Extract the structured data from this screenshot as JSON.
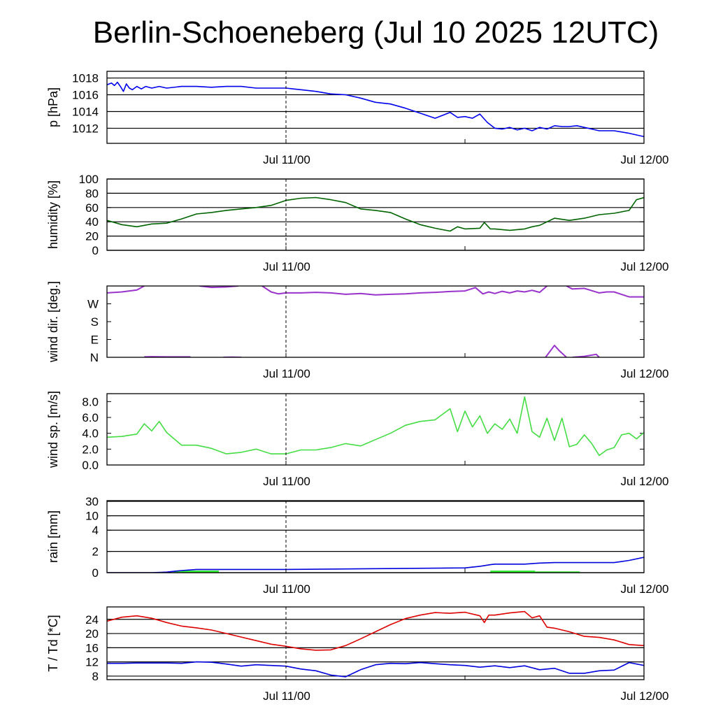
{
  "title": "Berlin-Schoeneberg (Jul 10 2025 12UTC)",
  "x_axis": {
    "tick_labels": [
      "Jul 11/00",
      "Jul 12/00"
    ],
    "x_range_hours": [
      0,
      36
    ],
    "ticks_hours": [
      12,
      24,
      36
    ]
  },
  "chart_data": [
    {
      "type": "line",
      "ylabel": "p [hPa]",
      "ylim": [
        1010.2,
        1018.8
      ],
      "yticks": [
        1012,
        1014,
        1016,
        1018
      ],
      "ytick_labels": [
        "1012",
        "1014",
        "1016",
        "1018"
      ],
      "grid": true,
      "color": "#0000ee",
      "series": [
        {
          "x": [
            0,
            0.3,
            0.5,
            0.7,
            0.9,
            1.1,
            1.3,
            1.5,
            1.7,
            2,
            2.3,
            2.6,
            3,
            3.5,
            4,
            5,
            6,
            7,
            8,
            9,
            10,
            11,
            12,
            12.5,
            13,
            14,
            15,
            16,
            17,
            18,
            19,
            20,
            21,
            22,
            23,
            23.5,
            24,
            24.5,
            25,
            25.5,
            26,
            26.5,
            27,
            27.5,
            28,
            28.5,
            29,
            29.5,
            30,
            30.5,
            31,
            31.5,
            32,
            33,
            34,
            35,
            36
          ],
          "values": [
            1017.2,
            1017.4,
            1017.1,
            1017.5,
            1017.0,
            1016.4,
            1017.3,
            1016.8,
            1016.6,
            1017.0,
            1016.7,
            1017.0,
            1016.8,
            1017.0,
            1016.8,
            1017.0,
            1017.0,
            1016.9,
            1017.0,
            1017.0,
            1016.8,
            1016.8,
            1016.8,
            1016.7,
            1016.6,
            1016.4,
            1016.1,
            1016.0,
            1015.6,
            1015.1,
            1014.9,
            1014.4,
            1013.8,
            1013.2,
            1013.9,
            1013.3,
            1013.4,
            1013.2,
            1013.7,
            1012.7,
            1012.0,
            1011.9,
            1012.1,
            1011.8,
            1012.0,
            1011.7,
            1012.1,
            1011.9,
            1012.3,
            1012.2,
            1012.2,
            1012.3,
            1012.1,
            1011.7,
            1011.7,
            1011.4,
            1011.0
          ]
        }
      ]
    },
    {
      "type": "line",
      "ylabel": "humidity [%]",
      "ylim": [
        0,
        100
      ],
      "yticks": [
        0,
        20,
        40,
        60,
        80,
        100
      ],
      "ytick_labels": [
        "0",
        "20",
        "40",
        "60",
        "80",
        "100"
      ],
      "grid": true,
      "color": "#006400",
      "series": [
        {
          "x": [
            0,
            1,
            2,
            3,
            4,
            5,
            6,
            7,
            8,
            9,
            10,
            11,
            12,
            13,
            14,
            15,
            16,
            17,
            18,
            19,
            20,
            21,
            22,
            23,
            23.5,
            24,
            25,
            25.3,
            25.7,
            26,
            27,
            28,
            28.5,
            29,
            30,
            31,
            32,
            33,
            34,
            35,
            35.5,
            36
          ],
          "values": [
            42,
            36,
            33,
            37,
            38,
            44,
            51,
            53,
            56,
            58,
            60,
            63,
            70,
            73,
            74,
            71,
            67,
            58,
            56,
            53,
            44,
            36,
            31,
            27,
            33,
            30,
            31,
            39,
            30,
            30,
            28,
            30,
            33,
            35,
            45,
            42,
            45,
            50,
            52,
            56,
            71,
            74
          ]
        }
      ]
    },
    {
      "type": "line",
      "ylabel": "wind dir. [deg.]",
      "ylim": [
        0,
        360
      ],
      "yticks": [
        0,
        90,
        180,
        270
      ],
      "ytick_labels": [
        "N",
        "E",
        "S",
        "W"
      ],
      "grid": false,
      "color": "#9933cc",
      "segments": [
        {
          "x": [
            0,
            1,
            2,
            2.5
          ],
          "values": [
            325,
            330,
            340,
            360
          ]
        },
        {
          "x": [
            6.2,
            7,
            8,
            8.8
          ],
          "values": [
            360,
            353,
            355,
            360
          ]
        },
        {
          "x": [
            2.5,
            3,
            4,
            5,
            5.6
          ],
          "values": [
            2,
            3,
            2,
            2,
            2
          ]
        },
        {
          "x": [
            7.8,
            8.4,
            9
          ],
          "values": [
            0,
            1,
            0
          ]
        },
        {
          "x": [
            10.4,
            11,
            11.5,
            12,
            13,
            14,
            15,
            16,
            17,
            18,
            19,
            20,
            21,
            22,
            23,
            24,
            24.7,
            25.2,
            25.6,
            26,
            26.5,
            27,
            27.5,
            28,
            28.5,
            29,
            29.5
          ],
          "values": [
            360,
            330,
            320,
            325,
            325,
            328,
            325,
            318,
            322,
            315,
            318,
            320,
            325,
            328,
            332,
            335,
            352,
            320,
            330,
            322,
            333,
            325,
            335,
            330,
            338,
            328,
            360
          ]
        },
        {
          "x": [
            30.8,
            31.2,
            32,
            33,
            33.5,
            34,
            35,
            36
          ],
          "values": [
            360,
            345,
            348,
            325,
            330,
            330,
            305,
            305
          ]
        },
        {
          "x": [
            29.4,
            29.8,
            30,
            30.3,
            30.8
          ],
          "values": [
            0,
            40,
            60,
            35,
            0
          ]
        },
        {
          "x": [
            31.2,
            32,
            32.8,
            33
          ],
          "values": [
            0,
            5,
            15,
            0
          ]
        }
      ]
    },
    {
      "type": "line",
      "ylabel": "wind sp. [m/s]",
      "ylim": [
        0,
        9
      ],
      "yticks": [
        0,
        2,
        4,
        6,
        8
      ],
      "ytick_labels": [
        "0.0",
        "2.0",
        "4.0",
        "6.0",
        "8.0"
      ],
      "grid": false,
      "color": "#44dd44",
      "series": [
        {
          "x": [
            0,
            1,
            2,
            2.5,
            3,
            3.5,
            4,
            4.5,
            5,
            6,
            7,
            8,
            9,
            10,
            11,
            12,
            13,
            14,
            15,
            16,
            17,
            18,
            19,
            20,
            21,
            22,
            23,
            23.5,
            24,
            24.5,
            25,
            25.5,
            26,
            26.5,
            27,
            27.5,
            28,
            28.5,
            29,
            29.5,
            30,
            30.5,
            31,
            31.5,
            32,
            32.5,
            33,
            33.5,
            34,
            34.5,
            35,
            35.5,
            36
          ],
          "values": [
            3.5,
            3.6,
            3.9,
            5.2,
            4.3,
            5.5,
            4.1,
            3.3,
            2.5,
            2.5,
            2.1,
            1.4,
            1.6,
            2.0,
            1.4,
            1.4,
            1.9,
            1.9,
            2.2,
            2.7,
            2.4,
            3.2,
            4.0,
            5.0,
            5.5,
            5.7,
            7.1,
            4.2,
            6.8,
            4.8,
            6.2,
            4.0,
            5.2,
            4.5,
            5.8,
            4.0,
            8.6,
            4.2,
            3.5,
            5.9,
            3.1,
            5.9,
            2.3,
            2.6,
            3.8,
            2.7,
            1.2,
            1.9,
            2.2,
            3.8,
            4.0,
            3.3,
            4.1
          ]
        }
      ]
    },
    {
      "type": "line",
      "ylabel": "rain [mm]",
      "ylim": [
        0,
        30
      ],
      "yticks": [
        0,
        2,
        4,
        10,
        30
      ],
      "ytick_labels": [
        "0",
        "2",
        "4",
        "10",
        "30"
      ],
      "grid": true,
      "color": "#0000dd",
      "scale": "nonlinear (sqrt-like)",
      "series": [
        {
          "x": [
            0,
            3,
            4,
            5,
            6,
            7,
            12,
            24,
            25,
            25.7,
            26,
            28,
            29,
            30,
            34,
            35,
            36
          ],
          "values": [
            0,
            0,
            0.05,
            0.2,
            0.3,
            0.3,
            0.3,
            0.45,
            0.6,
            0.75,
            0.8,
            0.8,
            0.9,
            0.95,
            0.95,
            1.15,
            1.45
          ]
        }
      ],
      "bars": {
        "color": "#33ee33",
        "intervals": [
          [
            4.5,
            7.5
          ],
          [
            25.7,
            28.7
          ],
          [
            28.7,
            31.7
          ]
        ],
        "values": [
          0.2,
          0.2,
          0.12
        ]
      }
    },
    {
      "type": "line",
      "ylabel": "T / Td [*C]",
      "ylim": [
        7,
        27.5
      ],
      "yticks": [
        8,
        12,
        16,
        20,
        24
      ],
      "ytick_labels": [
        "8",
        "12",
        "16",
        "20",
        "24"
      ],
      "grid": true,
      "series": [
        {
          "name": "T",
          "color": "#dd0000",
          "x": [
            0,
            1,
            2,
            3,
            4,
            5,
            6,
            7,
            8,
            9,
            10,
            11,
            12,
            13,
            14,
            15,
            16,
            17,
            18,
            19,
            20,
            21,
            22,
            23,
            24,
            25,
            25.3,
            25.6,
            26,
            27,
            28,
            28.5,
            29,
            29.5,
            30,
            31,
            32,
            33,
            34,
            35,
            36
          ],
          "values": [
            23.5,
            24.6,
            25.0,
            24.3,
            23.1,
            22.1,
            21.6,
            21.0,
            20.0,
            19.0,
            18.0,
            17.0,
            16.4,
            15.7,
            15.3,
            15.4,
            16.6,
            18.5,
            20.5,
            22.5,
            24.2,
            25.2,
            25.9,
            25.7,
            26.0,
            25.0,
            23.1,
            25.2,
            25.2,
            25.8,
            26.2,
            24.4,
            25.0,
            21.8,
            21.5,
            20.5,
            19.2,
            18.9,
            18.2,
            16.9,
            16.6
          ]
        },
        {
          "name": "Td",
          "color": "#0000dd",
          "x": [
            0,
            1,
            2,
            3,
            4,
            5,
            6,
            7,
            8,
            9,
            10,
            11,
            12,
            13,
            14,
            15,
            16,
            17,
            18,
            19,
            20,
            21,
            22,
            23,
            24,
            25,
            26,
            27,
            28,
            29,
            30,
            31,
            32,
            33,
            34,
            35,
            36
          ],
          "values": [
            11.6,
            11.6,
            11.7,
            11.7,
            11.7,
            11.6,
            12.0,
            11.9,
            11.4,
            10.8,
            11.2,
            11.0,
            10.8,
            10.0,
            9.5,
            8.3,
            7.8,
            9.8,
            11.2,
            11.6,
            11.5,
            11.8,
            11.5,
            11.2,
            11.0,
            10.5,
            10.9,
            10.4,
            10.9,
            9.8,
            10.2,
            8.8,
            8.8,
            9.5,
            9.7,
            11.8,
            11.0
          ]
        }
      ]
    }
  ]
}
